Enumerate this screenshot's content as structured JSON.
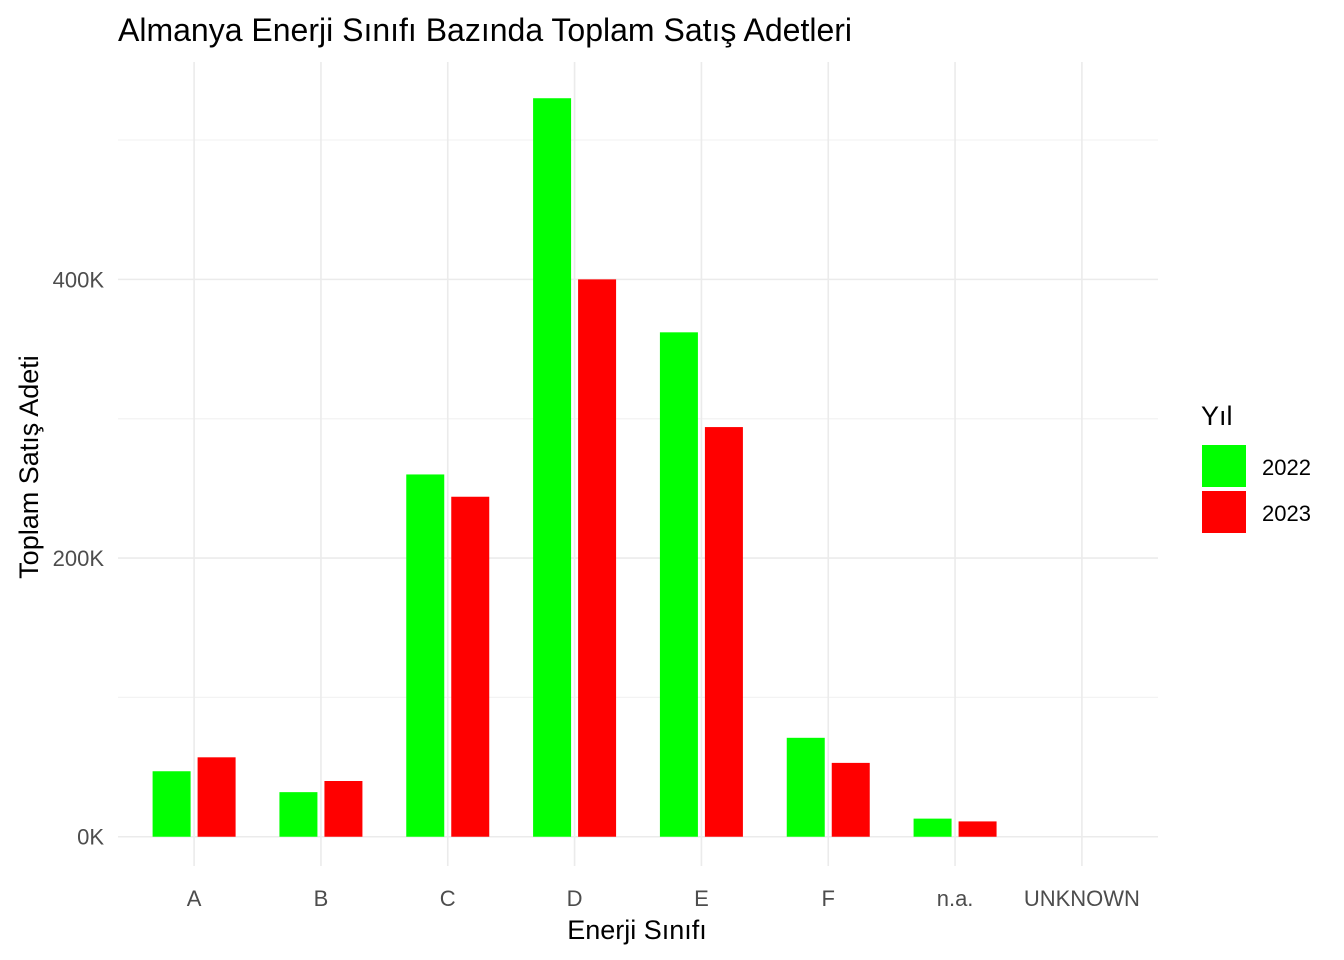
{
  "chart_data": {
    "type": "bar",
    "title": "Almanya Enerji Sınıfı Bazında Toplam Satış Adetleri",
    "xlabel": "Enerji Sınıfı",
    "ylabel": "Toplam Satış Adeti",
    "categories": [
      "A",
      "B",
      "C",
      "D",
      "E",
      "F",
      "n.a.",
      "UNKNOWN"
    ],
    "series": [
      {
        "name": "2022",
        "color": "#00ff00",
        "values": [
          47000,
          32000,
          260000,
          530000,
          362000,
          71000,
          13000,
          0
        ]
      },
      {
        "name": "2023",
        "color": "#ff0000",
        "values": [
          57000,
          40000,
          244000,
          400000,
          294000,
          53000,
          11000,
          0
        ]
      }
    ],
    "ylim": [
      -21000,
      556000
    ],
    "y_ticks": [
      {
        "value": 0,
        "label": "0K"
      },
      {
        "value": 200000,
        "label": "200K"
      },
      {
        "value": 400000,
        "label": "400K"
      }
    ],
    "y_minor_ticks": [
      100000,
      300000,
      500000
    ],
    "legend": {
      "title": "Yıl",
      "position": "right"
    },
    "grid": true
  }
}
